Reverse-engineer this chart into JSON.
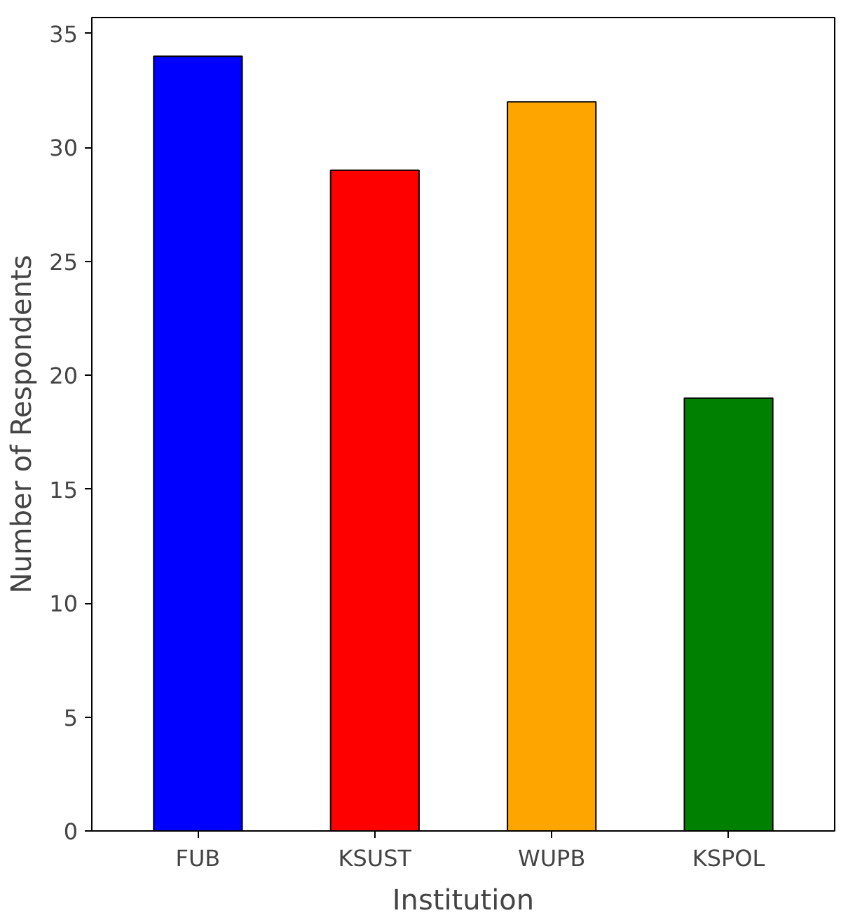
{
  "chart_data": {
    "type": "bar",
    "categories": [
      "FUB",
      "KSUST",
      "WUPB",
      "KSPOL"
    ],
    "values": [
      34,
      29,
      32,
      19
    ],
    "colors": [
      "#0000ff",
      "#ff0000",
      "#ffa500",
      "#008000"
    ],
    "xlabel": "Institution",
    "ylabel": "Number of Respondents",
    "ylim": [
      0,
      35.7
    ],
    "yticks": [
      0,
      5,
      10,
      15,
      20,
      25,
      30,
      35
    ],
    "grid": false
  }
}
